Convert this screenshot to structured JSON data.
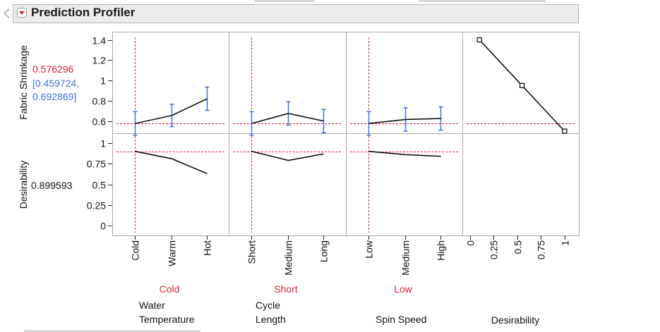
{
  "header": {
    "title": "Prediction Profiler"
  },
  "colors": {
    "current_value": "#e0243a",
    "interval": "#3c72d8",
    "curve": "#000000",
    "grid": "#a9a9a9",
    "reference_line": "#e0243a"
  },
  "chart_data": {
    "type": "line",
    "responses": [
      {
        "label": "Fabric Shrinkage",
        "current_value": "0.576296",
        "interval_text_1": "[0.459724,",
        "interval_text_2": "0.692869]",
        "current": 0.576296,
        "ylim": [
          0.48,
          1.48
        ],
        "ticks": [
          0.6,
          0.8,
          1,
          1.2,
          1.4
        ],
        "tick_labels": [
          "0.6",
          "0.8",
          "1",
          "1.2",
          "1.4"
        ]
      },
      {
        "label": "Desirability",
        "current_value": "0.899593",
        "current": 0.899593,
        "ylim": [
          -0.12,
          1.12
        ],
        "ticks": [
          0,
          0.25,
          0.5,
          0.75,
          1
        ],
        "tick_labels": [
          "0",
          "0.25",
          "0.5",
          "0.75",
          "1"
        ]
      }
    ],
    "factors": [
      {
        "name_line1": "Water",
        "name_line2": "Temperature",
        "current": "Cold",
        "categories": [
          "Cold",
          "Warm",
          "Hot"
        ],
        "shrinkage": [
          0.576,
          0.655,
          0.82
        ],
        "shrinkage_lower": [
          0.46,
          0.545,
          0.705
        ],
        "shrinkage_upper": [
          0.693,
          0.765,
          0.935
        ],
        "desirability": [
          0.9,
          0.81,
          0.63
        ]
      },
      {
        "name_line1": "Cycle",
        "name_line2": "Length",
        "current": "Short",
        "categories": [
          "Short",
          "Medium",
          "Long"
        ],
        "shrinkage": [
          0.576,
          0.675,
          0.6
        ],
        "shrinkage_lower": [
          0.46,
          0.56,
          0.485
        ],
        "shrinkage_upper": [
          0.693,
          0.79,
          0.715
        ],
        "desirability": [
          0.9,
          0.79,
          0.87
        ]
      },
      {
        "name_line1": "",
        "name_line2": "Spin Speed",
        "current": "Low",
        "categories": [
          "Low",
          "Medium",
          "High"
        ],
        "shrinkage": [
          0.576,
          0.615,
          0.625
        ],
        "shrinkage_lower": [
          0.46,
          0.5,
          0.51
        ],
        "shrinkage_upper": [
          0.693,
          0.73,
          0.74
        ],
        "desirability": [
          0.9,
          0.86,
          0.84
        ]
      }
    ],
    "desirability_function": {
      "label": "Desirability",
      "x_ticks": [
        0,
        0.25,
        0.5,
        0.75,
        1
      ],
      "x_tick_labels": [
        "0",
        "0.25",
        "0.5",
        "0.75",
        "1"
      ],
      "xlim": [
        -0.08,
        1.15
      ],
      "points": [
        {
          "desirability": 0.1,
          "shrinkage": 1.4
        },
        {
          "desirability": 0.55,
          "shrinkage": 0.95
        },
        {
          "desirability": 1.0,
          "shrinkage": 0.5
        }
      ]
    }
  }
}
